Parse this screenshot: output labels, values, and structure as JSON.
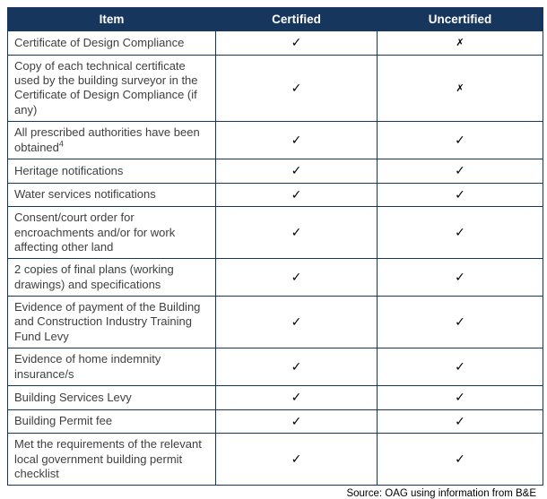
{
  "colors": {
    "header_bg": "#17365D",
    "border": "#17365D",
    "header_text": "#FFFFFF",
    "body_text": "#3F3F3F",
    "mark_color": "#000000"
  },
  "table": {
    "columns": [
      "Item",
      "Certified",
      "Uncertified"
    ],
    "symbols": {
      "check": "✓",
      "cross": "✗"
    },
    "rows": [
      {
        "item": "Certificate of Design Compliance",
        "certified": "check",
        "uncertified": "cross"
      },
      {
        "item": "Copy of each technical certificate used by the building surveyor in the Certificate of Design Compliance (if any)",
        "certified": "check",
        "uncertified": "cross"
      },
      {
        "item": "All prescribed authorities have been obtained",
        "sup": "4",
        "certified": "check",
        "uncertified": "check"
      },
      {
        "item": "Heritage notifications",
        "certified": "check",
        "uncertified": "check"
      },
      {
        "item": "Water services notifications",
        "certified": "check",
        "uncertified": "check"
      },
      {
        "item": "Consent/court order for encroachments and/or for work affecting other land",
        "certified": "check",
        "uncertified": "check"
      },
      {
        "item": "2 copies of final plans (working drawings) and specifications",
        "certified": "check",
        "uncertified": "check"
      },
      {
        "item": "Evidence of payment of the Building and Construction Industry Training Fund Levy",
        "certified": "check",
        "uncertified": "check"
      },
      {
        "item": "Evidence of home indemnity insurance/s",
        "certified": "check",
        "uncertified": "check"
      },
      {
        "item": "Building Services Levy",
        "certified": "check",
        "uncertified": "check"
      },
      {
        "item": "Building Permit fee",
        "certified": "check",
        "uncertified": "check"
      },
      {
        "item": "Met the requirements of the relevant local government building permit checklist",
        "certified": "check",
        "uncertified": "check"
      }
    ]
  },
  "source_note": "Source: OAG using information from B&E"
}
